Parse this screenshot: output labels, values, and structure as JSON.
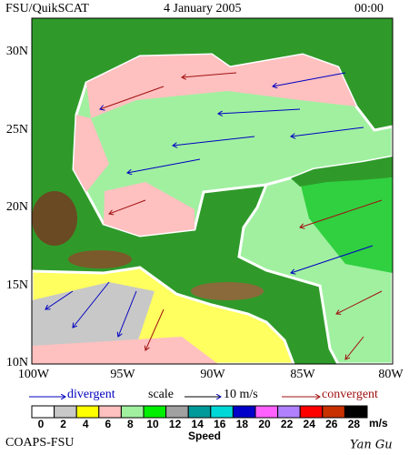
{
  "header": {
    "title": "FSU/QuikSCAT",
    "date": "4 January 2005",
    "time": "00:00"
  },
  "map": {
    "lat_labels": [
      "30N",
      "25N",
      "20N",
      "15N",
      "10N"
    ],
    "lon_labels": [
      "100W",
      "95W",
      "90W",
      "85W",
      "80W"
    ]
  },
  "legend": {
    "divergent": "divergent",
    "scale": "scale",
    "scale_value": "10 m/s",
    "convergent": "convergent"
  },
  "colorbar": {
    "ticks": [
      0,
      2,
      4,
      6,
      8,
      10,
      12,
      14,
      16,
      18,
      20,
      22,
      24,
      26,
      28
    ],
    "colors": [
      "#ffffff",
      "#c8c8c8",
      "#ffff00",
      "#ffc0c0",
      "#a0f0a0",
      "#00ee00",
      "#a0a0a0",
      "#009a9a",
      "#00d8d8",
      "#0000c8",
      "#ff60ff",
      "#b080ff",
      "#ff0000",
      "#c83000",
      "#000000"
    ],
    "unit": "m/s",
    "label": "Speed"
  },
  "footer": {
    "credit": "COAPS-FSU",
    "author": "Yan Gu"
  }
}
